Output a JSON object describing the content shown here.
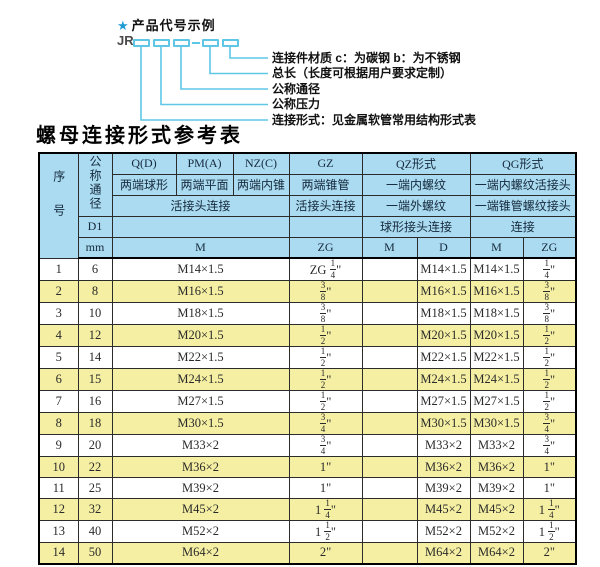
{
  "colors": {
    "accent_cyan": "#5ec7e6",
    "star_blue": "#1f9ad2",
    "header_bg": "#abdbf0",
    "row_alt_bg": "#f5efa3",
    "border": "#2b2b2b"
  },
  "diagram": {
    "star": "★",
    "heading": "产品代号示例",
    "code_prefix": "JR",
    "labels": [
      "连接件材质  c：为碳钢  b：为不锈钢",
      "总长（长度可根据用户要求定制）",
      "公称通径",
      "公称压力",
      "连接形式：见金属软管常用结构形式表"
    ]
  },
  "table": {
    "title": "螺母连接形式参考表",
    "header": {
      "seq": "序号",
      "nominal_diameter": "公称通径",
      "d1": "D1",
      "unit_mm": "mm",
      "col_q": "Q(D)",
      "col_pm": "PM(A)",
      "col_nz": "NZ(C)",
      "col_gz": "GZ",
      "col_qz": "QZ形式",
      "col_qg": "QG形式",
      "q_desc": "两端球形",
      "pm_desc": "两端平面",
      "nz_desc": "两端内锥",
      "gz_desc": "两端锥管",
      "qz_desc1": "一端内螺纹",
      "qg_desc1": "一端内螺纹活接头",
      "union_conn": "活接头连接",
      "gz_conn": "活接头连接",
      "qz_desc2": "一端外螺纹",
      "qg_desc2": "一端锥管螺纹接头",
      "qz_conn": "球形接头连接",
      "qg_conn": "连接",
      "unit_m": "M",
      "unit_zg": "ZG",
      "unit_qz_m": "M",
      "unit_qz_d": "D",
      "unit_qg_m": "M",
      "unit_qg_zg": "ZG"
    },
    "rows": [
      {
        "seq": "1",
        "d1": "6",
        "m": "M14×1.5",
        "gz_zg": "ZG 1/4\"",
        "qz_m": "",
        "qz_d": "M14×1.5",
        "qg_m": "M14×1.5",
        "qg_zg": "1/4\""
      },
      {
        "seq": "2",
        "d1": "8",
        "m": "M16×1.5",
        "gz_zg": "3/8\"",
        "qz_m": "",
        "qz_d": "M16×1.5",
        "qg_m": "M16×1.5",
        "qg_zg": "3/8\""
      },
      {
        "seq": "3",
        "d1": "10",
        "m": "M18×1.5",
        "gz_zg": "3/8\"",
        "qz_m": "",
        "qz_d": "M18×1.5",
        "qg_m": "M18×1.5",
        "qg_zg": "3/8\""
      },
      {
        "seq": "4",
        "d1": "12",
        "m": "M20×1.5",
        "gz_zg": "1/2\"",
        "qz_m": "",
        "qz_d": "M20×1.5",
        "qg_m": "M20×1.5",
        "qg_zg": "1/2\""
      },
      {
        "seq": "5",
        "d1": "14",
        "m": "M22×1.5",
        "gz_zg": "1/2\"",
        "qz_m": "",
        "qz_d": "M22×1.5",
        "qg_m": "M22×1.5",
        "qg_zg": "1/2\""
      },
      {
        "seq": "6",
        "d1": "15",
        "m": "M24×1.5",
        "gz_zg": "1/2\"",
        "qz_m": "",
        "qz_d": "M24×1.5",
        "qg_m": "M24×1.5",
        "qg_zg": "1/2\""
      },
      {
        "seq": "7",
        "d1": "16",
        "m": "M27×1.5",
        "gz_zg": "1/2\"",
        "qz_m": "",
        "qz_d": "M27×1.5",
        "qg_m": "M27×1.5",
        "qg_zg": "1/2\""
      },
      {
        "seq": "8",
        "d1": "18",
        "m": "M30×1.5",
        "gz_zg": "3/4\"",
        "qz_m": "",
        "qz_d": "M30×1.5",
        "qg_m": "M30×1.5",
        "qg_zg": "3/4\""
      },
      {
        "seq": "9",
        "d1": "20",
        "m": "M33×2",
        "gz_zg": "3/4\"",
        "qz_m": "",
        "qz_d": "M33×2",
        "qg_m": "M33×2",
        "qg_zg": "3/4\""
      },
      {
        "seq": "10",
        "d1": "22",
        "m": "M36×2",
        "gz_zg": "1\"",
        "qz_m": "",
        "qz_d": "M36×2",
        "qg_m": "M36×2",
        "qg_zg": "1\""
      },
      {
        "seq": "11",
        "d1": "25",
        "m": "M39×2",
        "gz_zg": "1\"",
        "qz_m": "",
        "qz_d": "M39×2",
        "qg_m": "M39×2",
        "qg_zg": "1\""
      },
      {
        "seq": "12",
        "d1": "32",
        "m": "M45×2",
        "gz_zg": "1 1/4\"",
        "qz_m": "",
        "qz_d": "M45×2",
        "qg_m": "M45×2",
        "qg_zg": "1 1/4\""
      },
      {
        "seq": "13",
        "d1": "40",
        "m": "M52×2",
        "gz_zg": "1 1/2\"",
        "qz_m": "",
        "qz_d": "M52×2",
        "qg_m": "M52×2",
        "qg_zg": "1 1/2\""
      },
      {
        "seq": "14",
        "d1": "50",
        "m": "M64×2",
        "gz_zg": "2\"",
        "qz_m": "",
        "qz_d": "M64×2",
        "qg_m": "M64×2",
        "qg_zg": "2\""
      }
    ]
  }
}
